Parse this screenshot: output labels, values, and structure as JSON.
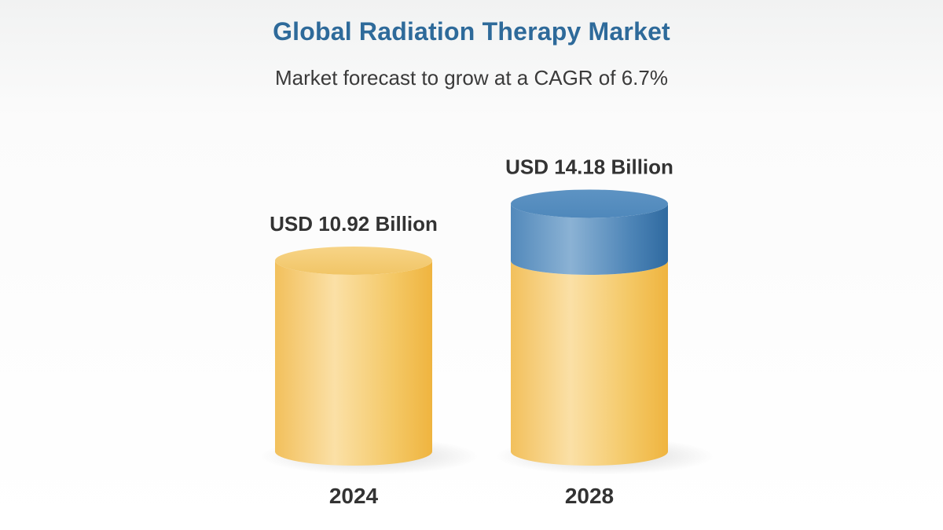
{
  "colors": {
    "base": "#f3bb45",
    "growth": "#3f7fb5",
    "title": "#2e6a9a"
  },
  "chart_data": {
    "type": "bar",
    "title": "Global Radiation Therapy Market",
    "subtitle": "Market forecast to grow at a CAGR of 6.7%",
    "categories": [
      "2024",
      "2028"
    ],
    "values": [
      10.92,
      14.18
    ],
    "data_labels": [
      "USD 10.92 Billion",
      "USD 14.18 Billion"
    ],
    "base_value": 10.92,
    "unit": "USD Billion",
    "xlabel": "",
    "ylabel": "",
    "grid": false,
    "legend": "none"
  }
}
